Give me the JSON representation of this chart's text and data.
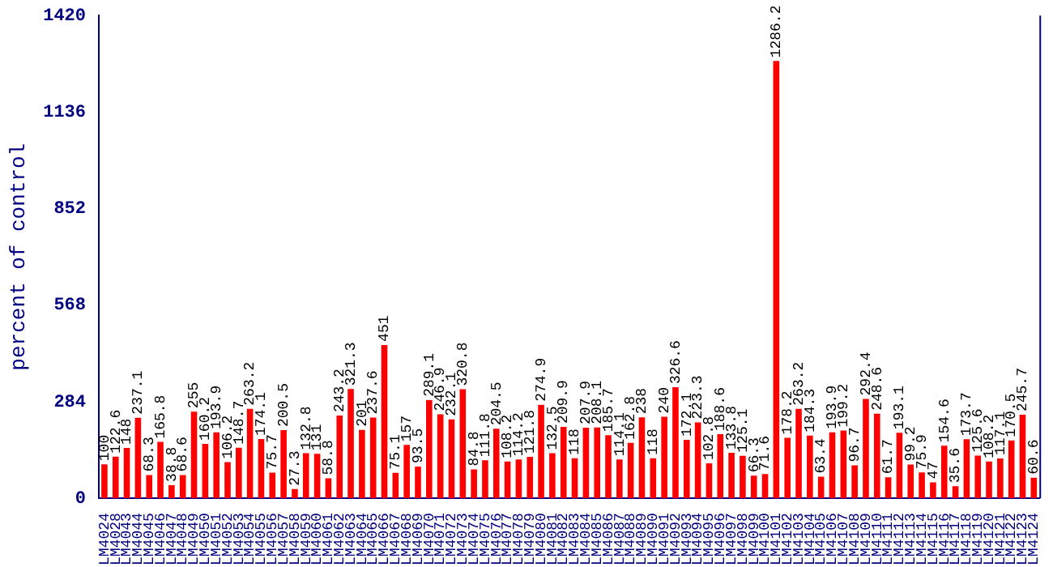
{
  "chart_data": {
    "type": "bar",
    "ylabel": "percent of control",
    "categories": [
      "LM4024",
      "LM4028",
      "LM4043",
      "LM4044",
      "LM4045",
      "LM4046",
      "LM4047",
      "LM4048",
      "LM4049",
      "LM4050",
      "LM4051",
      "LM4052",
      "LM4053",
      "LM4054",
      "LM4055",
      "LM4056",
      "LM4057",
      "LM4058",
      "LM4059",
      "LM4060",
      "LM4061",
      "LM4062",
      "LM4063",
      "LM4064",
      "LM4065",
      "LM4066",
      "LM4067",
      "LM4068",
      "LM4069",
      "LM4070",
      "LM4071",
      "LM4072",
      "LM4073",
      "LM4074",
      "LM4075",
      "LM4076",
      "LM4077",
      "LM4078",
      "LM4079",
      "LM4080",
      "LM4081",
      "LM4082",
      "LM4083",
      "LM4084",
      "LM4085",
      "LM4086",
      "LM4087",
      "LM4088",
      "LM4089",
      "LM4090",
      "LM4091",
      "LM4092",
      "LM4093",
      "LM4094",
      "LM4095",
      "LM4096",
      "LM4097",
      "LM4098",
      "LM4099",
      "LM4100",
      "LM4101",
      "LM4102",
      "LM4103",
      "LM4104",
      "LM4105",
      "LM4106",
      "LM4107",
      "LM4108",
      "LM4109",
      "LM4110",
      "LM4111",
      "LM4112",
      "LM4113",
      "LM4114",
      "LM4115",
      "LM4116",
      "LM4117",
      "LM4118",
      "LM4119",
      "LM4120",
      "LM4121",
      "LM4122",
      "LM4123",
      "LM4124"
    ],
    "values": [
      100,
      122.6,
      148,
      237.1,
      68.3,
      165.8,
      38.8,
      68.6,
      255,
      160.2,
      193.9,
      106.2,
      148.7,
      263.2,
      174.1,
      75.7,
      200.5,
      27.3,
      132.8,
      131,
      58.8,
      243.2,
      321.3,
      201,
      237.6,
      451,
      75.1,
      157,
      93.5,
      289.1,
      246.9,
      232.1,
      320.8,
      84.8,
      111.8,
      204.5,
      108.2,
      114.2,
      121.8,
      274.9,
      132.5,
      209.9,
      118,
      207.9,
      208.1,
      185.7,
      114.1,
      162.8,
      238,
      118,
      240,
      326.6,
      172.1,
      223.3,
      102.8,
      188.6,
      133.8,
      125.1,
      66.3,
      71.6,
      1286.2,
      178.2,
      263.2,
      184.3,
      63.4,
      193.9,
      199.2,
      96.7,
      292.4,
      248.6,
      61.7,
      193.1,
      99.2,
      75.9,
      47,
      154.6,
      35.6,
      173.7,
      125.6,
      108.2,
      117.1,
      170.5,
      245.7,
      60.6
    ],
    "color": "#ff0000",
    "ylim": [
      0,
      1420
    ],
    "yticks": [
      0,
      284,
      568,
      852,
      1136,
      1420
    ],
    "grid": false,
    "legend": false,
    "data_labels": true
  }
}
